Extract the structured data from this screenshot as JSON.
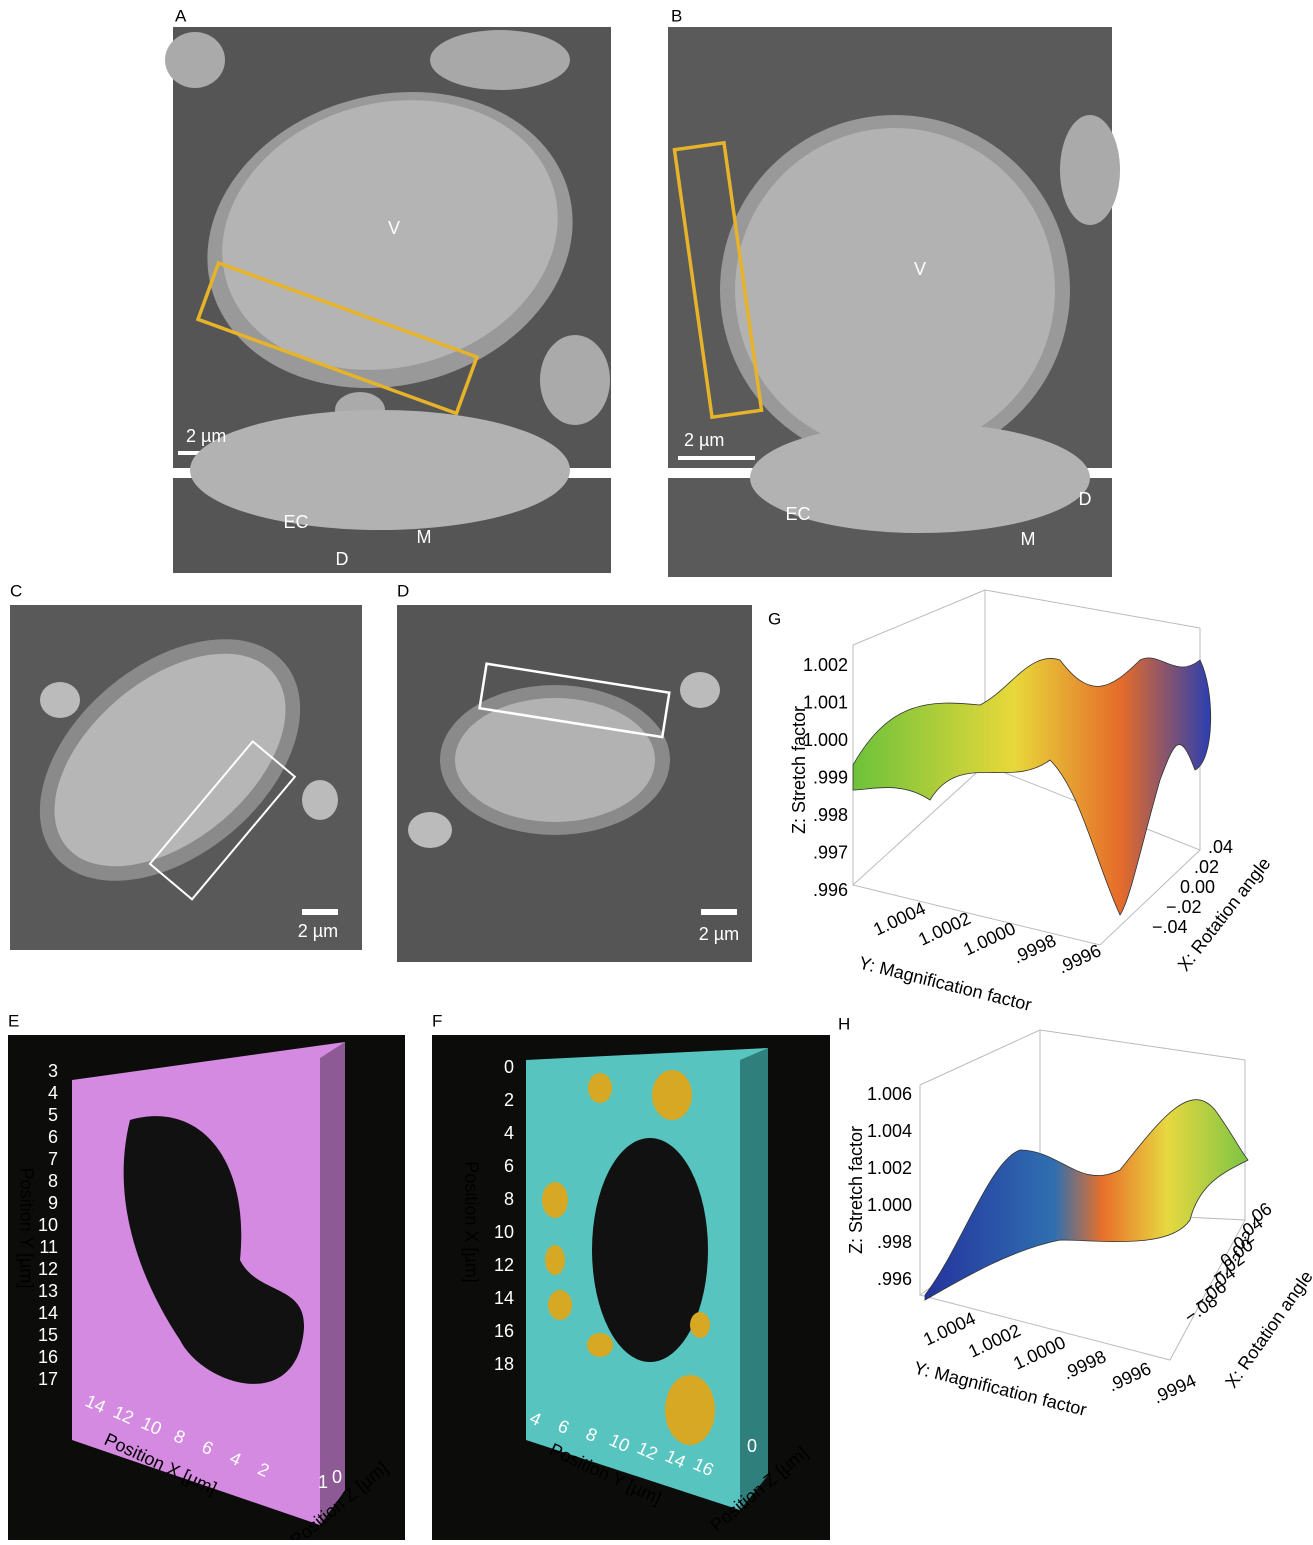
{
  "panel_a": {
    "label": "A",
    "vessel": "V",
    "scale_bar": "2 µm",
    "inset": {
      "ec": "EC",
      "d": "D",
      "m": "M"
    }
  },
  "panel_b": {
    "label": "B",
    "vessel": "V",
    "scale_bar": "2 µm",
    "inset": {
      "ec": "EC",
      "d": "D",
      "m": "M"
    }
  },
  "panel_c": {
    "label": "C",
    "scale_bar": "2 µm"
  },
  "panel_d": {
    "label": "D",
    "scale_bar": "2 µm"
  },
  "panel_e": {
    "label": "E",
    "y_axis_title": "Position Y [µm]",
    "y_ticks": [
      "3",
      "4",
      "5",
      "6",
      "7",
      "8",
      "9",
      "10",
      "11",
      "12",
      "13",
      "14",
      "15",
      "16",
      "17"
    ],
    "x_axis_title": "Position X [µm]",
    "x_ticks": [
      "14",
      "12",
      "10",
      "8",
      "6",
      "4",
      "2"
    ],
    "z_axis_title": "Position Z [µm]",
    "z_ticks": [
      "1",
      "0"
    ]
  },
  "panel_f": {
    "label": "F",
    "y_axis_title": "Position X [µm]",
    "y_ticks": [
      "0",
      "2",
      "4",
      "6",
      "8",
      "10",
      "12",
      "14",
      "16",
      "18"
    ],
    "x_axis_title": "Position Y [µm]",
    "x_ticks": [
      "4",
      "6",
      "8",
      "10",
      "12",
      "14",
      "16"
    ],
    "z_axis_title": "Position Z [µm]",
    "z_ticks": [
      "0"
    ]
  },
  "panel_g": {
    "label": "G",
    "z_axis_title": "Z: Stretch factor",
    "z_ticks": [
      "1.002",
      "1.001",
      "1.000",
      ".999",
      ".998",
      ".997",
      ".996"
    ],
    "y_axis_title": "Y: Magnification factor",
    "y_ticks": [
      "1.0004",
      "1.0002",
      "1.0000",
      ".9998",
      ".9996"
    ],
    "x_axis_title": "X: Rotation angle",
    "x_ticks": [
      ".04",
      ".02",
      "0.00",
      "−.02",
      "−.04"
    ]
  },
  "panel_h": {
    "label": "H",
    "z_axis_title": "Z: Stretch factor",
    "z_ticks": [
      "1.006",
      "1.004",
      "1.002",
      "1.000",
      ".998",
      ".996"
    ],
    "y_axis_title": "Y: Magnification factor",
    "y_ticks": [
      "1.0004",
      "1.0002",
      "1.0000",
      ".9998",
      ".9996",
      ".9994"
    ],
    "x_axis_title": "X: Rotation angle",
    "x_ticks": [
      ".06",
      ".04",
      ".02",
      "0.00",
      "−.02",
      "−.04",
      "−.06",
      "−.08"
    ]
  }
}
